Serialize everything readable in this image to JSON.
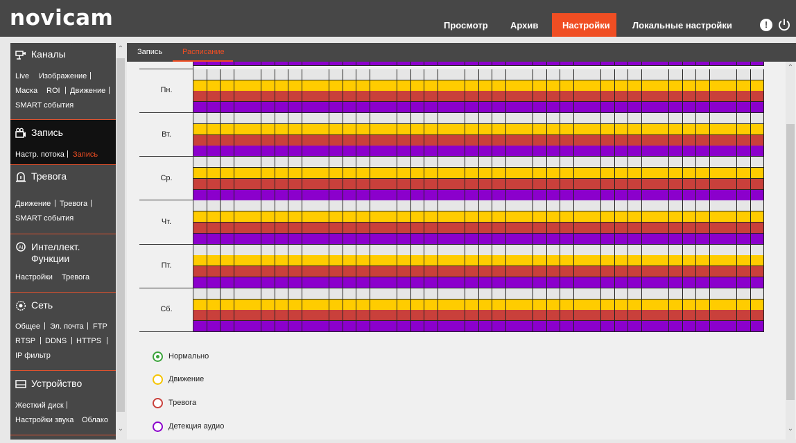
{
  "brand": {
    "logo_text": "novicam"
  },
  "top_nav": {
    "items": [
      {
        "label": "Просмотр"
      },
      {
        "label": "Архив"
      },
      {
        "label": "Настройки",
        "active": true
      },
      {
        "label": "Локальные настройки"
      }
    ],
    "warn_glyph": "!"
  },
  "sidebar": {
    "sections": [
      {
        "title": "Каналы",
        "icon": "camera-icon",
        "links": [
          [
            "Live",
            "Изображение"
          ],
          [
            "Маска",
            "ROI",
            "Движение"
          ],
          [
            "SMART события"
          ]
        ]
      },
      {
        "title": "Запись",
        "icon": "record-icon",
        "active": true,
        "links": [
          [
            "Настр. потока",
            "Запись"
          ]
        ],
        "active_link": "Запись"
      },
      {
        "title": "Тревога",
        "icon": "alarm-icon",
        "links": [
          [
            "Движение",
            "Тревога"
          ],
          [
            "SMART события"
          ]
        ]
      },
      {
        "title": "Интеллект. Функции",
        "title_line1": "Интеллект.",
        "title_line2": "Функции",
        "icon": "ai-icon",
        "links": [
          [
            "Настройки",
            "Тревога"
          ]
        ]
      },
      {
        "title": "Сеть",
        "icon": "network-icon",
        "links": [
          [
            "Общее",
            "Эл. почта",
            "FTP"
          ],
          [
            "RTSP",
            "DDNS",
            "HTTPS"
          ],
          [
            "IP фильтр"
          ]
        ]
      },
      {
        "title": "Устройство",
        "icon": "device-icon",
        "links": [
          [
            "Жесткий диск"
          ],
          [
            "Настройки звука",
            "Облако"
          ]
        ]
      }
    ]
  },
  "tabs": [
    {
      "label": "Запись"
    },
    {
      "label": "Расписание",
      "active": true
    }
  ],
  "schedule": {
    "days": [
      "Пн.",
      "Вт.",
      "Ср.",
      "Чт.",
      "Пт.",
      "Сб."
    ],
    "columns": 42,
    "row_types": [
      "normal",
      "motion",
      "alarm",
      "audio"
    ],
    "colors": {
      "normal": "#e6e6e6",
      "motion": "#ffcc00",
      "alarm": "#c9403b",
      "audio": "#8b00cc"
    }
  },
  "legend": [
    {
      "label": "Нормально",
      "color": "#3aa33a",
      "selected": true
    },
    {
      "label": "Движение",
      "color": "#f5c400",
      "selected": false
    },
    {
      "label": "Тревога",
      "color": "#c9403b",
      "selected": false
    },
    {
      "label": "Детекция аудио",
      "color": "#8b00cc",
      "selected": false
    }
  ]
}
